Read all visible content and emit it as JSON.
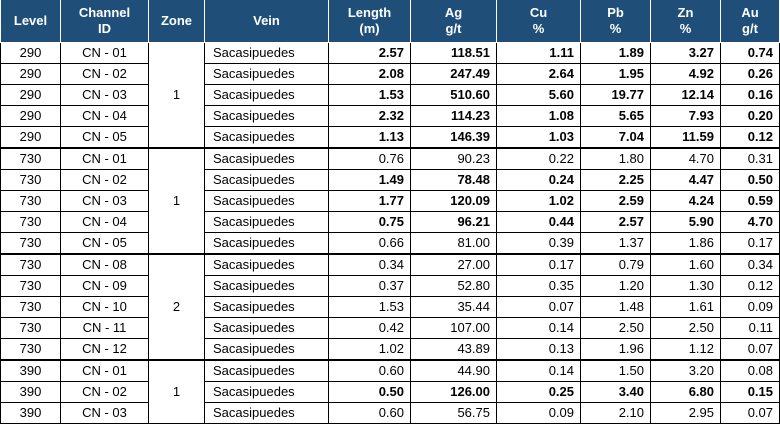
{
  "table": {
    "headers": {
      "level": "Level",
      "channel_1": "Channel",
      "channel_2": "ID",
      "zone": "Zone",
      "vein": "Vein",
      "length_1": "Length",
      "length_2": "(m)",
      "ag_1": "Ag",
      "ag_2": "g/t",
      "cu_1": "Cu",
      "cu_2": "%",
      "pb_1": "Pb",
      "pb_2": "%",
      "zn_1": "Zn",
      "zn_2": "%",
      "au_1": "Au",
      "au_2": "g/t"
    },
    "groups": [
      {
        "zone": "1",
        "rows": [
          {
            "level": "290",
            "channel": "CN - 01",
            "vein": "Sacasipuedes",
            "length": "2.57",
            "ag": "118.51",
            "cu": "1.11",
            "pb": "1.89",
            "zn": "3.27",
            "au": "0.74",
            "bold": true
          },
          {
            "level": "290",
            "channel": "CN - 02",
            "vein": "Sacasipuedes",
            "length": "2.08",
            "ag": "247.49",
            "cu": "2.64",
            "pb": "1.95",
            "zn": "4.92",
            "au": "0.26",
            "bold": true
          },
          {
            "level": "290",
            "channel": "CN - 03",
            "vein": "Sacasipuedes",
            "length": "1.53",
            "ag": "510.60",
            "cu": "5.60",
            "pb": "19.77",
            "zn": "12.14",
            "au": "0.16",
            "bold": true
          },
          {
            "level": "290",
            "channel": "CN - 04",
            "vein": "Sacasipuedes",
            "length": "2.32",
            "ag": "114.23",
            "cu": "1.08",
            "pb": "5.65",
            "zn": "7.93",
            "au": "0.20",
            "bold": true
          },
          {
            "level": "290",
            "channel": "CN - 05",
            "vein": "Sacasipuedes",
            "length": "1.13",
            "ag": "146.39",
            "cu": "1.03",
            "pb": "7.04",
            "zn": "11.59",
            "au": "0.12",
            "bold": true
          }
        ]
      },
      {
        "zone": "1",
        "rows": [
          {
            "level": "730",
            "channel": "CN - 01",
            "vein": "Sacasipuedes",
            "length": "0.76",
            "ag": "90.23",
            "cu": "0.22",
            "pb": "1.80",
            "zn": "4.70",
            "au": "0.31",
            "bold": false
          },
          {
            "level": "730",
            "channel": "CN - 02",
            "vein": "Sacasipuedes",
            "length": "1.49",
            "ag": "78.48",
            "cu": "0.24",
            "pb": "2.25",
            "zn": "4.47",
            "au": "0.50",
            "bold": true
          },
          {
            "level": "730",
            "channel": "CN - 03",
            "vein": "Sacasipuedes",
            "length": "1.77",
            "ag": "120.09",
            "cu": "1.02",
            "pb": "2.59",
            "zn": "4.24",
            "au": "0.59",
            "bold": true
          },
          {
            "level": "730",
            "channel": "CN - 04",
            "vein": "Sacasipuedes",
            "length": "0.75",
            "ag": "96.21",
            "cu": "0.44",
            "pb": "2.57",
            "zn": "5.90",
            "au": "4.70",
            "bold": true
          },
          {
            "level": "730",
            "channel": "CN - 05",
            "vein": "Sacasipuedes",
            "length": "0.66",
            "ag": "81.00",
            "cu": "0.39",
            "pb": "1.37",
            "zn": "1.86",
            "au": "0.17",
            "bold": false
          }
        ]
      },
      {
        "zone": "2",
        "rows": [
          {
            "level": "730",
            "channel": "CN - 08",
            "vein": "Sacasipuedes",
            "length": "0.34",
            "ag": "27.00",
            "cu": "0.17",
            "pb": "0.79",
            "zn": "1.60",
            "au": "0.34",
            "bold": false
          },
          {
            "level": "730",
            "channel": "CN - 09",
            "vein": "Sacasipuedes",
            "length": "0.37",
            "ag": "52.80",
            "cu": "0.35",
            "pb": "1.20",
            "zn": "1.30",
            "au": "0.12",
            "bold": false
          },
          {
            "level": "730",
            "channel": "CN - 10",
            "vein": "Sacasipuedes",
            "length": "1.53",
            "ag": "35.44",
            "cu": "0.07",
            "pb": "1.48",
            "zn": "1.61",
            "au": "0.09",
            "bold": false
          },
          {
            "level": "730",
            "channel": "CN - 11",
            "vein": "Sacasipuedes",
            "length": "0.42",
            "ag": "107.00",
            "cu": "0.14",
            "pb": "2.50",
            "zn": "2.50",
            "au": "0.11",
            "bold": false
          },
          {
            "level": "730",
            "channel": "CN - 12",
            "vein": "Sacasipuedes",
            "length": "1.02",
            "ag": "43.89",
            "cu": "0.13",
            "pb": "1.96",
            "zn": "1.12",
            "au": "0.07",
            "bold": false
          }
        ]
      },
      {
        "zone": "1",
        "rows": [
          {
            "level": "390",
            "channel": "CN - 01",
            "vein": "Sacasipuedes",
            "length": "0.60",
            "ag": "44.90",
            "cu": "0.14",
            "pb": "1.50",
            "zn": "3.20",
            "au": "0.08",
            "bold": false
          },
          {
            "level": "390",
            "channel": "CN - 02",
            "vein": "Sacasipuedes",
            "length": "0.50",
            "ag": "126.00",
            "cu": "0.25",
            "pb": "3.40",
            "zn": "6.80",
            "au": "0.15",
            "bold": true
          },
          {
            "level": "390",
            "channel": "CN - 03",
            "vein": "Sacasipuedes",
            "length": "0.60",
            "ag": "56.75",
            "cu": "0.09",
            "pb": "2.10",
            "zn": "2.95",
            "au": "0.07",
            "bold": false
          }
        ]
      }
    ]
  }
}
